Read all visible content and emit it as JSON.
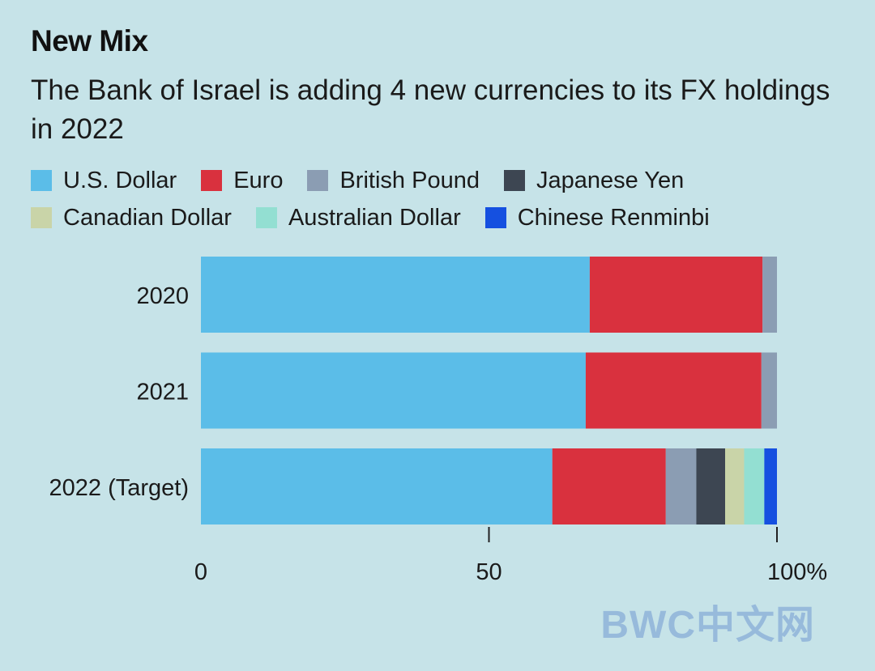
{
  "header": {
    "title": "New Mix",
    "subtitle": "The Bank of Israel is adding 4 new currencies to its FX holdings in 2022"
  },
  "legend": {
    "rows": [
      [
        {
          "label": "U.S. Dollar",
          "color": "#5bbde8"
        },
        {
          "label": "Euro",
          "color": "#d9313e"
        },
        {
          "label": "British Pound",
          "color": "#8b9db3"
        },
        {
          "label": "Japanese Yen",
          "color": "#3d4652"
        }
      ],
      [
        {
          "label": "Canadian Dollar",
          "color": "#c9d4a8"
        },
        {
          "label": "Australian Dollar",
          "color": "#93dfd2"
        },
        {
          "label": "Chinese Renminbi",
          "color": "#1550e0"
        }
      ]
    ]
  },
  "chart_data": {
    "type": "bar",
    "orientation": "horizontal",
    "stacked": true,
    "categories": [
      "2020",
      "2021",
      "2022 (Target)"
    ],
    "series": [
      {
        "name": "U.S. Dollar",
        "color": "#5bbde8",
        "values": [
          67.5,
          66.8,
          61
        ]
      },
      {
        "name": "Euro",
        "color": "#d9313e",
        "values": [
          30,
          30.5,
          19.7
        ]
      },
      {
        "name": "British Pound",
        "color": "#8b9db3",
        "values": [
          2.5,
          2.7,
          5.3
        ]
      },
      {
        "name": "Japanese Yen",
        "color": "#3d4652",
        "values": [
          0,
          0,
          5
        ]
      },
      {
        "name": "Canadian Dollar",
        "color": "#c9d4a8",
        "values": [
          0,
          0,
          3.3
        ]
      },
      {
        "name": "Australian Dollar",
        "color": "#93dfd2",
        "values": [
          0,
          0,
          3.5
        ]
      },
      {
        "name": "Chinese Renminbi",
        "color": "#1550e0",
        "values": [
          0,
          0,
          2.2
        ]
      }
    ],
    "xlim": [
      0,
      100
    ],
    "xticks": [
      {
        "value": 0,
        "label": "0"
      },
      {
        "value": 50,
        "label": "50"
      },
      {
        "value": 100,
        "label": "100%"
      }
    ],
    "grid": false
  },
  "watermark": "BWC中文网"
}
